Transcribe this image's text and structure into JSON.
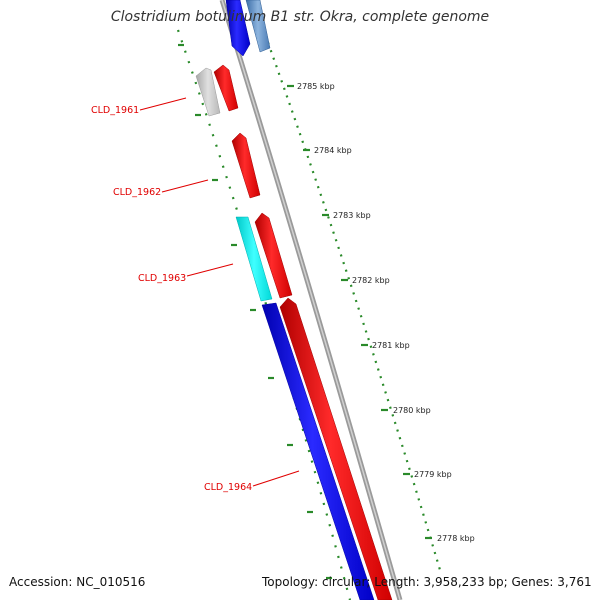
{
  "header": {
    "title": "Clostridium botulinum B1 str. Okra, complete genome"
  },
  "footer": {
    "accession": "Accession: NC_010516",
    "summary": "Topology: circular; Length: 3,958,233 bp; Genes: 3,761"
  },
  "ruler": {
    "labels": [
      "2785 kbp",
      "2784 kbp",
      "2783 kbp",
      "2782 kbp",
      "2781 kbp",
      "2780 kbp",
      "2779 kbp",
      "2778 kbp"
    ]
  },
  "genes": [
    {
      "name": "CLD_1961"
    },
    {
      "name": "CLD_1962"
    },
    {
      "name": "CLD_1963"
    },
    {
      "name": "CLD_1964"
    }
  ],
  "colors": {
    "forward_cds": "#ff0000",
    "reverse_cds": "#0000ff",
    "rna": "#00ffff",
    "other": "#c8c8c8",
    "backbone": "#888888",
    "ruler": "#2a8a2a",
    "label": "#e00000"
  },
  "icons": {
    "feature-arrow": "arrow-shape",
    "ruler-tick": "dash"
  }
}
